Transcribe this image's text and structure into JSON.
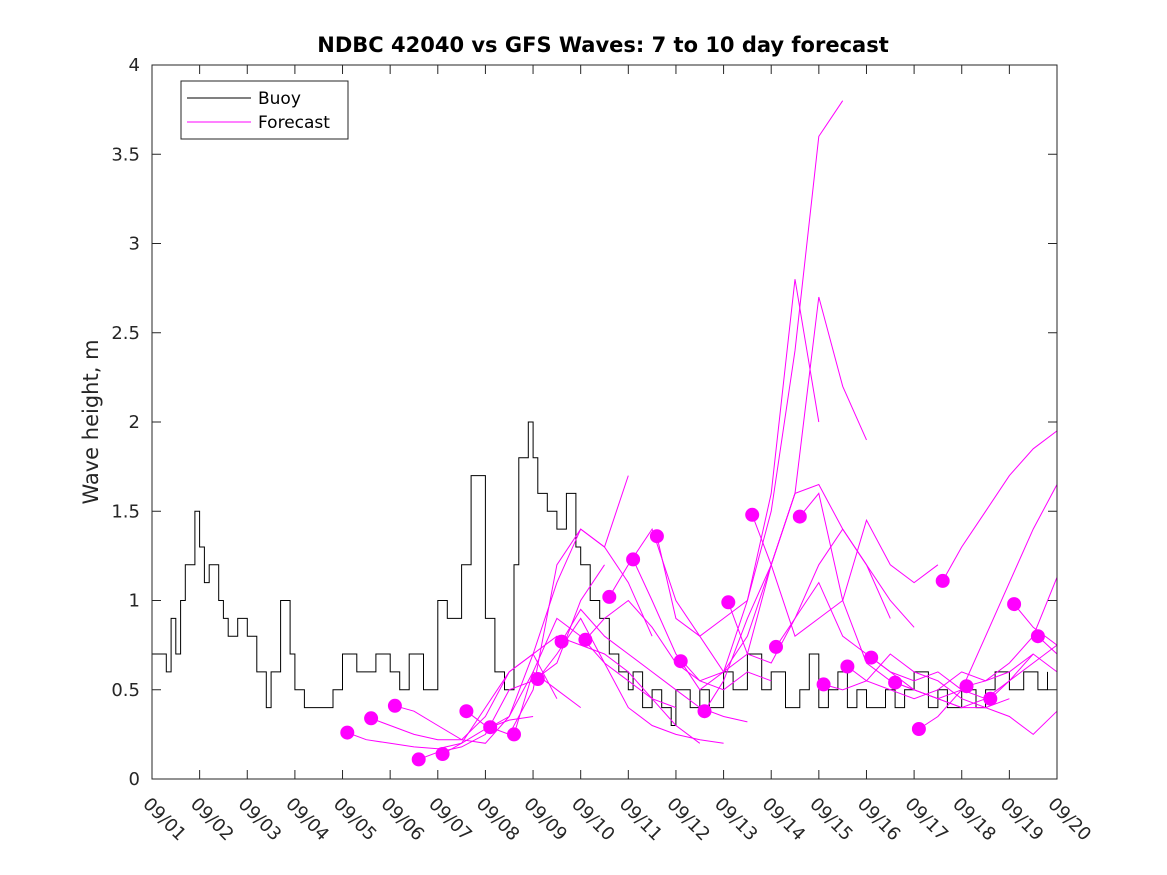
{
  "chart_data": {
    "type": "line",
    "title": "NDBC 42040 vs GFS Waves: 7 to 10 day forecast",
    "xlabel": "",
    "ylabel": "Wave height, m",
    "xlim": [
      0,
      19
    ],
    "ylim": [
      0,
      4
    ],
    "yticks": [
      0,
      0.5,
      1,
      1.5,
      2,
      2.5,
      3,
      3.5,
      4
    ],
    "ytick_labels": [
      "0",
      "0.5",
      "1",
      "1.5",
      "2",
      "2.5",
      "3",
      "3.5",
      "4"
    ],
    "xticks": [
      0,
      1,
      2,
      3,
      4,
      5,
      6,
      7,
      8,
      9,
      10,
      11,
      12,
      13,
      14,
      15,
      16,
      17,
      18,
      19
    ],
    "xtick_labels": [
      "09/01",
      "09/02",
      "09/03",
      "09/04",
      "09/05",
      "09/06",
      "09/07",
      "09/08",
      "09/09",
      "09/10",
      "09/11",
      "09/12",
      "09/13",
      "09/14",
      "09/15",
      "09/16",
      "09/17",
      "09/18",
      "09/19",
      "09/20"
    ],
    "grid": false,
    "legend": {
      "placement": "top-left",
      "entries": [
        {
          "label": "Buoy",
          "color": "#000000"
        },
        {
          "label": "Forecast",
          "color": "#ff00ff"
        }
      ]
    },
    "colors": {
      "buoy": "#000000",
      "forecast": "#ff00ff",
      "axes": "#262626"
    },
    "series": [
      {
        "name": "Buoy",
        "x": [
          0,
          0.2,
          0.3,
          0.4,
          0.5,
          0.6,
          0.7,
          0.9,
          1.0,
          1.1,
          1.2,
          1.4,
          1.5,
          1.6,
          1.8,
          2.0,
          2.2,
          2.4,
          2.5,
          2.7,
          2.9,
          3.0,
          3.2,
          3.4,
          3.6,
          3.8,
          4.0,
          4.3,
          4.5,
          4.7,
          5.0,
          5.2,
          5.4,
          5.7,
          6.0,
          6.2,
          6.5,
          6.7,
          7.0,
          7.2,
          7.4,
          7.6,
          7.7,
          7.9,
          8.0,
          8.1,
          8.3,
          8.5,
          8.7,
          8.9,
          9.0,
          9.2,
          9.4,
          9.6,
          9.8,
          10.0,
          10.1,
          10.3,
          10.5,
          10.7,
          10.9,
          11.0,
          11.3,
          11.5,
          11.7,
          12.0,
          12.2,
          12.5,
          12.8,
          13.0,
          13.3,
          13.6,
          13.8,
          14.0,
          14.2,
          14.4,
          14.6,
          14.8,
          15.0,
          15.2,
          15.4,
          15.6,
          15.8,
          16.0,
          16.3,
          16.5,
          16.7,
          17.0,
          17.3,
          17.5,
          17.7,
          18.0,
          18.3,
          18.6,
          18.8
        ],
        "values": [
          0.7,
          0.7,
          0.6,
          0.9,
          0.7,
          1.0,
          1.2,
          1.5,
          1.3,
          1.1,
          1.2,
          1.0,
          0.9,
          0.8,
          0.9,
          0.8,
          0.6,
          0.4,
          0.6,
          1.0,
          0.7,
          0.5,
          0.4,
          0.4,
          0.4,
          0.5,
          0.7,
          0.6,
          0.6,
          0.7,
          0.6,
          0.5,
          0.7,
          0.5,
          1.0,
          0.9,
          1.2,
          1.7,
          0.9,
          0.6,
          0.5,
          1.2,
          1.8,
          2.0,
          1.8,
          1.6,
          1.5,
          1.4,
          1.6,
          1.3,
          1.2,
          1.0,
          0.9,
          0.7,
          0.6,
          0.5,
          0.6,
          0.4,
          0.5,
          0.4,
          0.3,
          0.5,
          0.4,
          0.5,
          0.4,
          0.6,
          0.5,
          0.7,
          0.5,
          0.6,
          0.4,
          0.5,
          0.7,
          0.4,
          0.5,
          0.6,
          0.4,
          0.5,
          0.4,
          0.4,
          0.5,
          0.4,
          0.5,
          0.6,
          0.4,
          0.5,
          0.4,
          0.5,
          0.4,
          0.5,
          0.6,
          0.5,
          0.6,
          0.5,
          0.6
        ]
      },
      {
        "name": "Forecast",
        "lines": [
          {
            "x": [
              4.1,
              4.5,
              5.0,
              5.5,
              6.0,
              6.5,
              7.0,
              7.5,
              8.0
            ],
            "values": [
              0.26,
              0.22,
              0.2,
              0.18,
              0.17,
              0.2,
              0.28,
              0.33,
              0.35
            ]
          },
          {
            "x": [
              4.6,
              5.0,
              5.5,
              6.0,
              6.5,
              7.0,
              7.5,
              8.0,
              8.5
            ],
            "values": [
              0.34,
              0.3,
              0.25,
              0.22,
              0.22,
              0.35,
              0.6,
              0.7,
              0.45
            ]
          },
          {
            "x": [
              5.1,
              5.5,
              6.0,
              6.5,
              7.0,
              7.5,
              8.0,
              8.5,
              9.0
            ],
            "values": [
              0.41,
              0.38,
              0.3,
              0.22,
              0.2,
              0.35,
              0.6,
              0.5,
              0.4
            ]
          },
          {
            "x": [
              5.6,
              6.0,
              6.5,
              7.0,
              7.5,
              8.0,
              8.5,
              9.0,
              9.5
            ],
            "values": [
              0.11,
              0.15,
              0.18,
              0.25,
              0.5,
              0.55,
              0.65,
              1.0,
              1.2
            ]
          },
          {
            "x": [
              6.1,
              6.5,
              7.0,
              7.5,
              8.0,
              8.5,
              9.0,
              9.5,
              10.0
            ],
            "values": [
              0.14,
              0.2,
              0.4,
              0.6,
              0.7,
              1.1,
              1.4,
              1.3,
              1.7
            ]
          },
          {
            "x": [
              6.6,
              7.0,
              7.5,
              8.0,
              8.5,
              9.0,
              9.5,
              10.0,
              10.5
            ],
            "values": [
              0.38,
              0.3,
              0.25,
              0.5,
              1.2,
              1.4,
              1.3,
              1.1,
              0.8
            ]
          },
          {
            "x": [
              7.1,
              7.5,
              8.0,
              8.5,
              9.0,
              9.5,
              10.0,
              10.5,
              11.0
            ],
            "values": [
              0.29,
              0.35,
              0.7,
              0.8,
              0.75,
              0.7,
              0.6,
              0.45,
              0.4
            ]
          },
          {
            "x": [
              7.6,
              8.0,
              8.5,
              9.0,
              9.5,
              10.0,
              10.5,
              11.0,
              11.5
            ],
            "values": [
              0.25,
              0.6,
              0.9,
              0.8,
              0.65,
              0.55,
              0.45,
              0.3,
              0.2
            ]
          },
          {
            "x": [
              8.1,
              8.5,
              9.0,
              9.5,
              10.0,
              10.5,
              11.0,
              11.5,
              12.0
            ],
            "values": [
              0.56,
              0.7,
              0.9,
              0.65,
              0.4,
              0.3,
              0.25,
              0.22,
              0.2
            ]
          },
          {
            "x": [
              8.6,
              9.0,
              9.5,
              10.0,
              10.5,
              11.0,
              11.5,
              12.0,
              12.5
            ],
            "values": [
              0.77,
              0.95,
              0.8,
              0.7,
              0.6,
              0.5,
              0.4,
              0.35,
              0.32
            ]
          },
          {
            "x": [
              9.1,
              9.5,
              10.0,
              10.5,
              11.0,
              11.5,
              12.0,
              12.5,
              13.0
            ],
            "values": [
              0.78,
              0.9,
              1.0,
              0.85,
              0.65,
              0.55,
              0.5,
              0.6,
              0.55
            ]
          },
          {
            "x": [
              9.6,
              10.0,
              10.5,
              11.0,
              11.5,
              12.0,
              12.5,
              13.0,
              13.5
            ],
            "values": [
              1.02,
              1.2,
              1.4,
              1.0,
              0.8,
              0.6,
              0.7,
              1.2,
              1.6
            ]
          },
          {
            "x": [
              10.1,
              10.5,
              11.0,
              11.5,
              12.0,
              12.5,
              13.0,
              13.5,
              14.0
            ],
            "values": [
              1.23,
              1.0,
              0.7,
              0.55,
              0.6,
              1.0,
              1.6,
              2.8,
              2.0
            ]
          },
          {
            "x": [
              10.6,
              11.0,
              11.5,
              12.0,
              12.5,
              13.0,
              13.5,
              14.0,
              14.5
            ],
            "values": [
              1.36,
              0.9,
              0.8,
              0.9,
              1.0,
              1.5,
              2.4,
              3.6,
              3.8
            ]
          },
          {
            "x": [
              11.1,
              11.5,
              12.0,
              12.5,
              13.0,
              13.5,
              14.0,
              14.5,
              15.0
            ],
            "values": [
              0.66,
              0.5,
              0.6,
              0.8,
              1.2,
              1.6,
              2.7,
              2.2,
              1.9
            ]
          },
          {
            "x": [
              11.6,
              12.0,
              12.5,
              13.0,
              13.5,
              14.0,
              14.5,
              15.0,
              15.5
            ],
            "values": [
              0.38,
              0.55,
              0.9,
              1.2,
              1.6,
              1.65,
              1.4,
              1.2,
              0.9
            ]
          },
          {
            "x": [
              12.1,
              12.5,
              13.0,
              13.5,
              14.0,
              14.5,
              15.0,
              15.5,
              16.0
            ],
            "values": [
              0.99,
              0.7,
              0.65,
              0.9,
              1.2,
              1.4,
              1.2,
              1.0,
              0.85
            ]
          },
          {
            "x": [
              12.6,
              13.0,
              13.5,
              14.0,
              14.5,
              15.0,
              15.5,
              16.0,
              16.5
            ],
            "values": [
              1.48,
              1.2,
              0.8,
              0.9,
              1.0,
              1.45,
              1.2,
              1.1,
              1.2
            ]
          },
          {
            "x": [
              13.1,
              13.5,
              14.0,
              14.5,
              15.0,
              15.5,
              16.0,
              16.5,
              17.0
            ],
            "values": [
              0.74,
              0.9,
              1.1,
              0.8,
              0.7,
              0.6,
              0.55,
              0.6,
              0.5
            ]
          },
          {
            "x": [
              13.6,
              14.0,
              14.5,
              15.0,
              15.5,
              16.0,
              16.5,
              17.0,
              17.5
            ],
            "values": [
              1.47,
              1.6,
              1.0,
              0.65,
              0.55,
              0.5,
              0.45,
              0.5,
              0.45
            ]
          },
          {
            "x": [
              14.1,
              14.5,
              15.0,
              15.5,
              16.0,
              16.5,
              17.0,
              17.5,
              18.0
            ],
            "values": [
              0.53,
              0.5,
              0.55,
              0.7,
              0.6,
              0.55,
              0.45,
              0.4,
              0.45
            ]
          },
          {
            "x": [
              14.6,
              15.0,
              15.5,
              16.0,
              16.5,
              17.0,
              17.5,
              18.0,
              18.5
            ],
            "values": [
              0.63,
              0.55,
              0.5,
              0.45,
              0.5,
              0.6,
              0.55,
              0.6,
              0.7
            ]
          },
          {
            "x": [
              15.1,
              15.5,
              16.0,
              16.5,
              17.0,
              17.5,
              18.0,
              18.5,
              19.0
            ],
            "values": [
              0.68,
              0.6,
              0.5,
              0.45,
              0.4,
              0.4,
              0.35,
              0.25,
              0.38
            ]
          },
          {
            "x": [
              15.6,
              16.0,
              16.5,
              17.0,
              17.5,
              18.0,
              18.5,
              19.0
            ],
            "values": [
              0.54,
              0.5,
              0.45,
              0.4,
              0.45,
              0.55,
              0.65,
              0.75
            ]
          },
          {
            "x": [
              16.1,
              16.5,
              17.0,
              17.5,
              18.0,
              18.5,
              19.0
            ],
            "values": [
              0.28,
              0.35,
              0.5,
              0.8,
              1.1,
              1.4,
              1.65
            ]
          },
          {
            "x": [
              16.6,
              17.0,
              17.5,
              18.0,
              18.5,
              19.0
            ],
            "values": [
              1.11,
              1.3,
              1.5,
              1.7,
              1.85,
              1.95
            ]
          },
          {
            "x": [
              17.1,
              17.5,
              18.0,
              18.5,
              19.0
            ],
            "values": [
              0.52,
              0.55,
              0.65,
              0.8,
              1.13
            ]
          },
          {
            "x": [
              17.6,
              18.0,
              18.5,
              19.0
            ],
            "values": [
              0.45,
              0.55,
              0.7,
              0.6
            ]
          },
          {
            "x": [
              18.1,
              18.5,
              19.0
            ],
            "values": [
              0.98,
              0.85,
              0.75
            ]
          },
          {
            "x": [
              18.6,
              19.0
            ],
            "values": [
              0.8,
              0.7
            ]
          }
        ],
        "markers": {
          "x": [
            4.1,
            4.6,
            5.1,
            5.6,
            6.1,
            6.6,
            7.1,
            7.6,
            8.1,
            8.6,
            9.1,
            9.6,
            10.1,
            10.6,
            11.1,
            11.6,
            12.1,
            12.6,
            13.1,
            13.6,
            14.1,
            14.6,
            15.1,
            15.6,
            16.1,
            16.6,
            17.1,
            17.6,
            18.1,
            18.6
          ],
          "values": [
            0.26,
            0.34,
            0.41,
            0.11,
            0.14,
            0.38,
            0.29,
            0.25,
            0.56,
            0.77,
            0.78,
            1.02,
            1.23,
            1.36,
            0.66,
            0.38,
            0.99,
            1.48,
            0.74,
            1.47,
            0.53,
            0.63,
            0.68,
            0.54,
            0.28,
            1.11,
            0.52,
            0.45,
            0.98,
            0.8
          ]
        }
      }
    ]
  }
}
